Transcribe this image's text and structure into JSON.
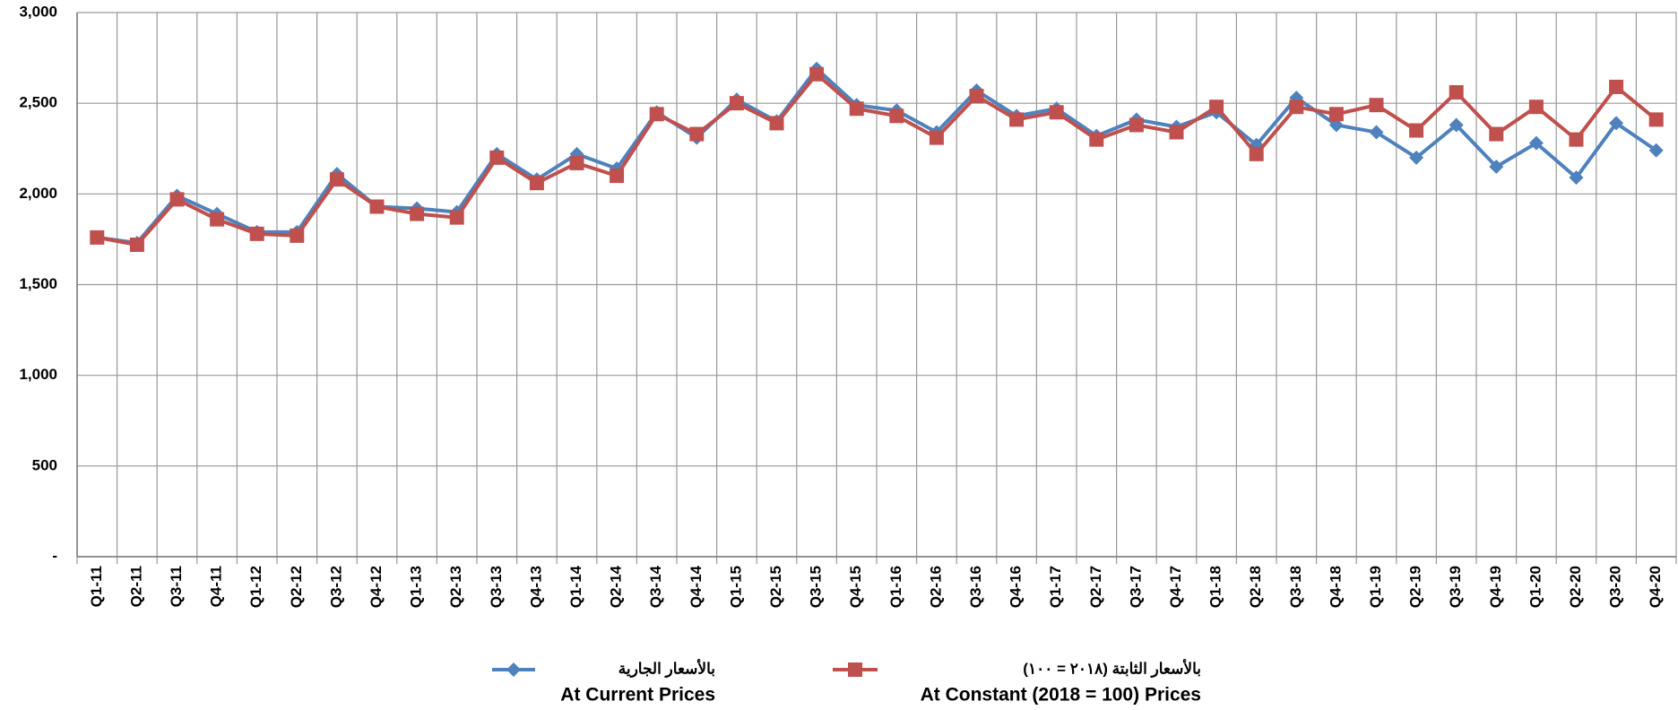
{
  "chart_data": {
    "type": "line",
    "categories": [
      "Q1-11",
      "Q2-11",
      "Q3-11",
      "Q4-11",
      "Q1-12",
      "Q2-12",
      "Q3-12",
      "Q4-12",
      "Q1-13",
      "Q2-13",
      "Q3-13",
      "Q4-13",
      "Q1-14",
      "Q2-14",
      "Q3-14",
      "Q4-14",
      "Q1-15",
      "Q2-15",
      "Q3-15",
      "Q4-15",
      "Q1-16",
      "Q2-16",
      "Q3-16",
      "Q4-16",
      "Q1-17",
      "Q2-17",
      "Q3-17",
      "Q4-17",
      "Q1-18",
      "Q2-18",
      "Q3-18",
      "Q4-18",
      "Q1-19",
      "Q2-19",
      "Q3-19",
      "Q4-19",
      "Q1-20",
      "Q2-20",
      "Q3-20",
      "Q4-20"
    ],
    "series": [
      {
        "name": "At Current Prices",
        "name_ar": "بالأسعار الجارية",
        "color": "#4f81bd",
        "marker": "diamond",
        "values": [
          1760,
          1730,
          1990,
          1890,
          1790,
          1790,
          2110,
          1930,
          1920,
          1900,
          2220,
          2080,
          2220,
          2140,
          2450,
          2310,
          2520,
          2400,
          2690,
          2490,
          2460,
          2340,
          2570,
          2430,
          2470,
          2320,
          2410,
          2370,
          2450,
          2270,
          2530,
          2380,
          2340,
          2200,
          2380,
          2150,
          2280,
          2090,
          2390,
          2240
        ]
      },
      {
        "name": "At Constant (2018 = 100) Prices",
        "name_ar": "بالأسعار الثابتة (٢٠١٨ = ١٠٠)",
        "color": "#c0504d",
        "marker": "square",
        "values": [
          1760,
          1720,
          1970,
          1860,
          1780,
          1770,
          2080,
          1930,
          1890,
          1870,
          2200,
          2060,
          2170,
          2100,
          2440,
          2330,
          2500,
          2390,
          2660,
          2470,
          2430,
          2310,
          2540,
          2410,
          2450,
          2300,
          2380,
          2340,
          2480,
          2220,
          2480,
          2440,
          2490,
          2350,
          2560,
          2330,
          2480,
          2300,
          2590,
          2410
        ]
      }
    ],
    "ylim": [
      0,
      3000
    ],
    "yticks": [
      {
        "value": 0,
        "label": "-"
      },
      500,
      {
        "value": 1000,
        "label": "1,000"
      },
      {
        "value": 1500,
        "label": "1,500"
      },
      {
        "value": 2000,
        "label": "2,000"
      },
      {
        "value": 2500,
        "label": "2,500"
      },
      {
        "value": 3000,
        "label": "3,000"
      }
    ],
    "grid": true
  }
}
